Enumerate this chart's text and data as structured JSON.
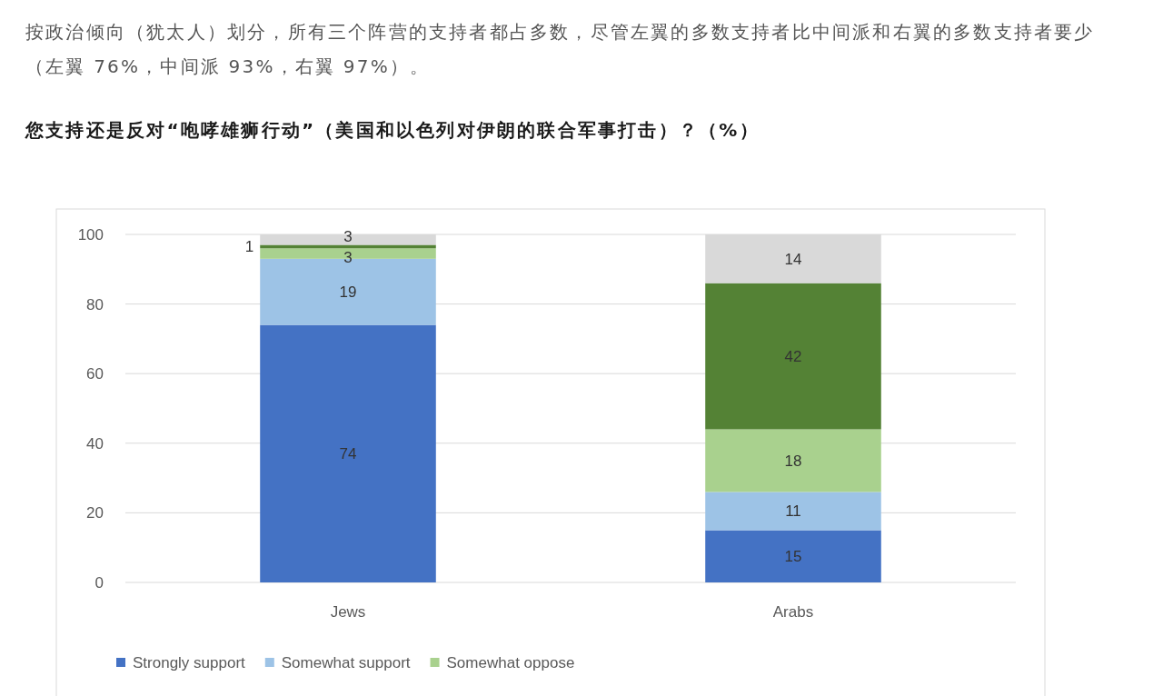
{
  "chart_data": {
    "type": "bar",
    "title": "您支持还是反对“咆哮雄狮行动”（美国和以色列对伊朗的联合军事打击）？（%）",
    "annotations": [
      "按政治倾向（犹太人）划分，所有三个阵营的支持者都占多数，尽管左翼的多数支持者比中间派和右翼的多数支持者要少（左翼 76%，中间派 93%，右翼 97%）。"
    ],
    "categories": [
      "Jews",
      "Arabs"
    ],
    "stacked": true,
    "series": [
      {
        "name": "Strongly support",
        "color": "#4472c4",
        "values": [
          74,
          15
        ]
      },
      {
        "name": "Somewhat support",
        "color": "#9dc3e6",
        "values": [
          19,
          11
        ]
      },
      {
        "name": "Somewhat oppose",
        "color": "#a9d18e",
        "values": [
          3,
          18
        ]
      },
      {
        "color": "#548235",
        "values": [
          1,
          42
        ]
      },
      {
        "color": "#d9d9d9",
        "values": [
          3,
          14
        ]
      }
    ],
    "ylim": [
      0,
      100
    ],
    "yticks": [
      0,
      20,
      40,
      60,
      80,
      100
    ],
    "grid": "y",
    "legend": "bottom",
    "data_labels": true
  }
}
